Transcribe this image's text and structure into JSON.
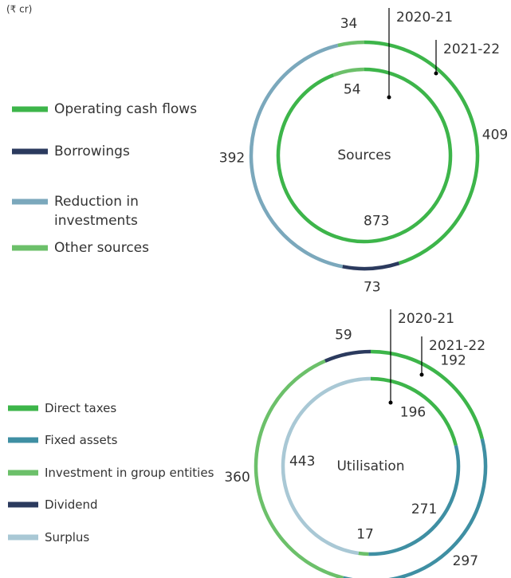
{
  "unit": "(₹ cr)",
  "chart_data": [
    {
      "type": "donut",
      "center_label": "Sources",
      "categories": [
        "Operating cash flows",
        "Borrowings",
        "Reduction in investments",
        "Other sources"
      ],
      "colors": [
        "#3db54a",
        "#2b3a5e",
        "#7ba8bc",
        "#6cc06a"
      ],
      "series": [
        {
          "name": "2021-22",
          "values": [
            409,
            73,
            392,
            34
          ]
        },
        {
          "name": "2020-21",
          "values": [
            873,
            null,
            null,
            54
          ]
        }
      ]
    },
    {
      "type": "donut",
      "center_label": "Utilisation",
      "categories": [
        "Direct taxes",
        "Fixed assets",
        "Investment in group entities",
        "Dividend",
        "Surplus"
      ],
      "colors": [
        "#3db54a",
        "#3f8fa3",
        "#6cc06a",
        "#2b3a5e",
        "#a9c8d5"
      ],
      "series": [
        {
          "name": "2021-22",
          "values": [
            192,
            297,
            360,
            59,
            null
          ]
        },
        {
          "name": "2020-21",
          "values": [
            196,
            271,
            17,
            null,
            443
          ]
        }
      ]
    }
  ]
}
